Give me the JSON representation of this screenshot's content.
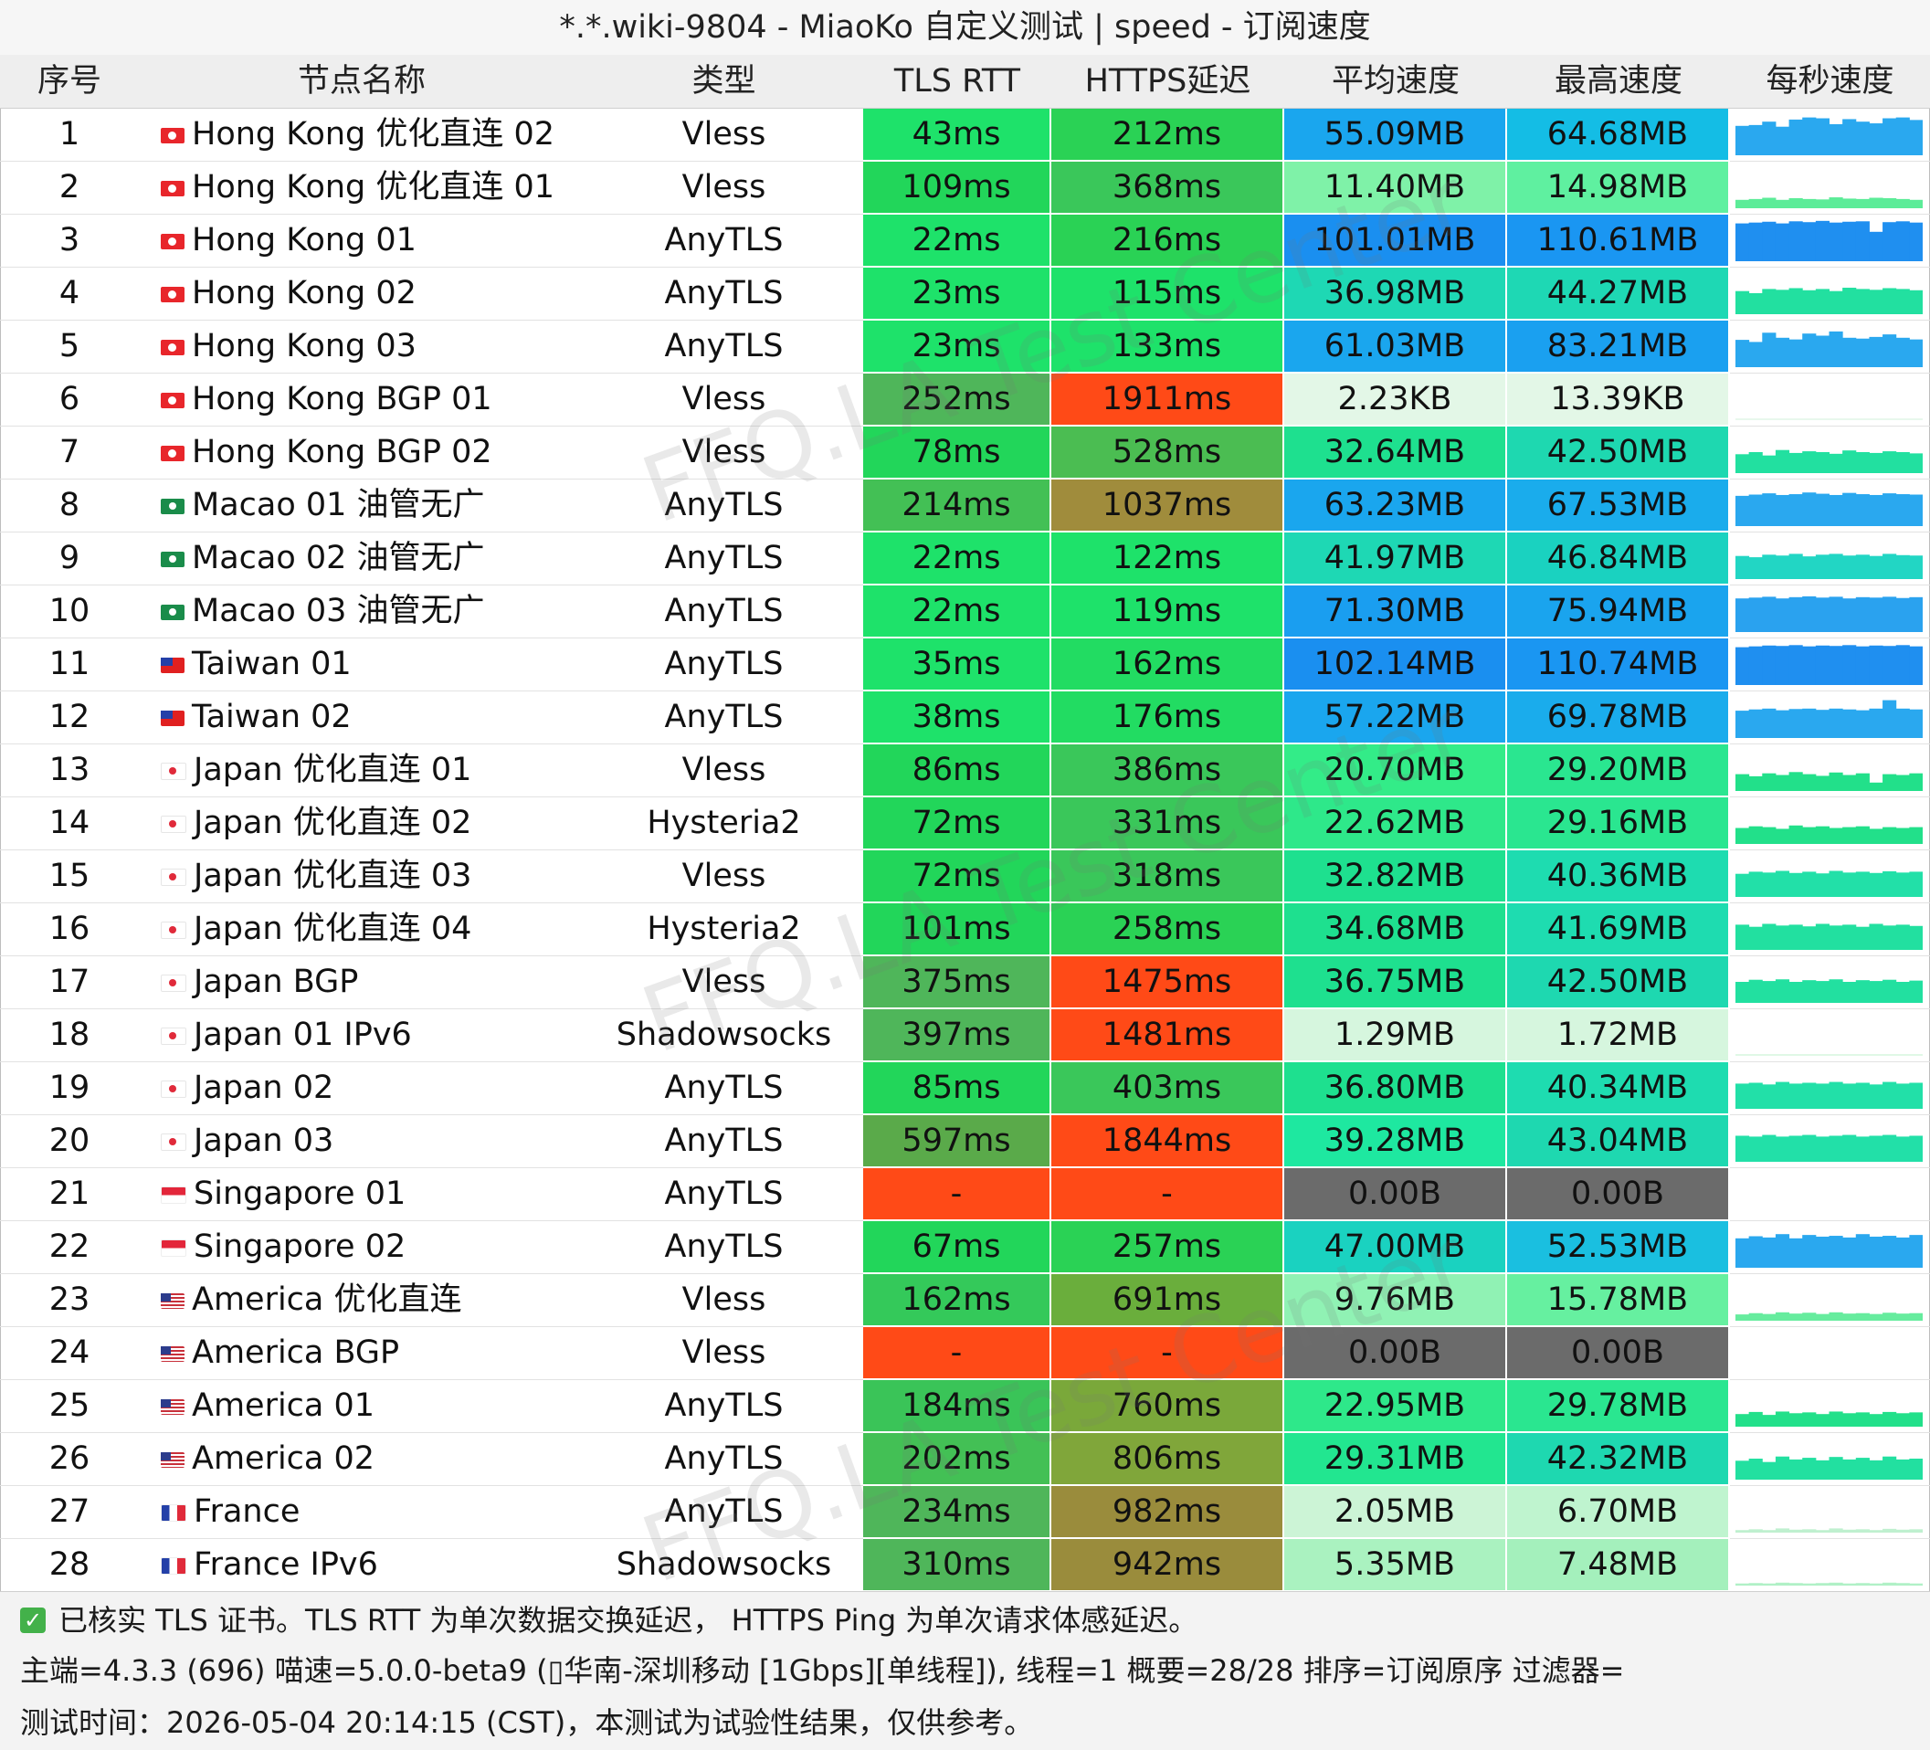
{
  "title": "*.*.wiki-9804 - MiaoKo 自定义测试 | speed - 订阅速度",
  "headers": [
    "序号",
    "节点名称",
    "类型",
    "TLS RTT",
    "HTTPS延迟",
    "平均速度",
    "最高速度",
    "每秒速度"
  ],
  "watermark": "FFQ.LA Test Center",
  "rows": [
    {
      "idx": "1",
      "flag": "hk",
      "name": "Hong Kong 优化直连 02",
      "type": "Vless",
      "rtt": "43ms",
      "https": "212ms",
      "avg": "55.09MB",
      "max": "64.68MB",
      "rtt_color": "#1ee26a",
      "https_color": "#2ad255",
      "avg_color": "#1aa6ee",
      "max_color": "#14bde5",
      "spark_color": "#2aa8ef",
      "spark": [
        0.7,
        0.72,
        0.8,
        0.68,
        0.85,
        0.9,
        0.88,
        0.74,
        0.86,
        0.8,
        0.76,
        0.88,
        0.9,
        0.84
      ]
    },
    {
      "idx": "2",
      "flag": "hk",
      "name": "Hong Kong 优化直连 01",
      "type": "Vless",
      "rtt": "109ms",
      "https": "368ms",
      "avg": "11.40MB",
      "max": "14.98MB",
      "rtt_color": "#22d65a",
      "https_color": "#3ac75a",
      "avg_color": "#7ff2a8",
      "max_color": "#5ff0a0",
      "spark_color": "#5cec98",
      "spark": [
        0.2,
        0.22,
        0.25,
        0.2,
        0.24,
        0.22,
        0.21,
        0.26,
        0.23,
        0.22,
        0.25,
        0.24,
        0.22,
        0.2
      ]
    },
    {
      "idx": "3",
      "flag": "hk",
      "name": "Hong Kong 01",
      "type": "AnyTLS",
      "rtt": "22ms",
      "https": "216ms",
      "avg": "101.01MB",
      "max": "110.61MB",
      "rtt_color": "#1ee26a",
      "https_color": "#2ad255",
      "avg_color": "#1a8ff0",
      "max_color": "#1a96f2",
      "spark_color": "#1f8ff0",
      "spark": [
        0.9,
        0.92,
        0.94,
        0.9,
        0.95,
        0.93,
        0.96,
        0.92,
        0.94,
        0.95,
        0.7,
        0.93,
        0.95,
        0.92
      ]
    },
    {
      "idx": "4",
      "flag": "hk",
      "name": "Hong Kong 02",
      "type": "AnyTLS",
      "rtt": "23ms",
      "https": "115ms",
      "avg": "36.98MB",
      "max": "44.27MB",
      "rtt_color": "#1ee26a",
      "https_color": "#1ee26a",
      "avg_color": "#1ed8b4",
      "max_color": "#1ed8b4",
      "spark_color": "#22e0a0",
      "spark": [
        0.55,
        0.5,
        0.6,
        0.58,
        0.62,
        0.57,
        0.6,
        0.55,
        0.63,
        0.6,
        0.58,
        0.62,
        0.6,
        0.57
      ]
    },
    {
      "idx": "5",
      "flag": "hk",
      "name": "Hong Kong 03",
      "type": "AnyTLS",
      "rtt": "23ms",
      "https": "133ms",
      "avg": "61.03MB",
      "max": "83.21MB",
      "rtt_color": "#1ee26a",
      "https_color": "#1ee26a",
      "avg_color": "#1aa6ee",
      "max_color": "#1aa0f0",
      "spark_color": "#2aa8ef",
      "spark": [
        0.65,
        0.6,
        0.82,
        0.7,
        0.66,
        0.8,
        0.75,
        0.85,
        0.7,
        0.68,
        0.72,
        0.78,
        0.7,
        0.66
      ]
    },
    {
      "idx": "6",
      "flag": "hk",
      "name": "Hong Kong BGP 01",
      "type": "Vless",
      "rtt": "252ms",
      "https": "1911ms",
      "avg": "2.23KB",
      "max": "13.39KB",
      "rtt_color": "#4fb65a",
      "https_color": "#ff4a17",
      "avg_color": "#e3f7e7",
      "max_color": "#e3f7e7",
      "spark_color": "#e8f8ec",
      "spark": [
        0.02,
        0.02,
        0.02,
        0.02,
        0.02,
        0.02,
        0.02,
        0.02,
        0.02,
        0.02,
        0.02,
        0.02,
        0.02,
        0.02
      ]
    },
    {
      "idx": "7",
      "flag": "hk",
      "name": "Hong Kong BGP 02",
      "type": "Vless",
      "rtt": "78ms",
      "https": "528ms",
      "avg": "32.64MB",
      "max": "42.50MB",
      "rtt_color": "#22d65a",
      "https_color": "#4bbd52",
      "avg_color": "#1ee08f",
      "max_color": "#1ed8b0",
      "spark_color": "#22e0a0",
      "spark": [
        0.45,
        0.5,
        0.42,
        0.55,
        0.48,
        0.52,
        0.5,
        0.46,
        0.54,
        0.5,
        0.48,
        0.52,
        0.5,
        0.47
      ]
    },
    {
      "idx": "8",
      "flag": "mo",
      "name": "Macao 01 油管无广",
      "type": "AnyTLS",
      "rtt": "214ms",
      "https": "1037ms",
      "avg": "63.23MB",
      "max": "67.53MB",
      "rtt_color": "#43c055",
      "https_color": "#a08c3c",
      "avg_color": "#1aa6ee",
      "max_color": "#1aacec",
      "spark_color": "#2aa8ef",
      "spark": [
        0.72,
        0.75,
        0.78,
        0.74,
        0.76,
        0.8,
        0.77,
        0.74,
        0.79,
        0.76,
        0.74,
        0.78,
        0.76,
        0.75
      ]
    },
    {
      "idx": "9",
      "flag": "mo",
      "name": "Macao 02 油管无广",
      "type": "AnyTLS",
      "rtt": "22ms",
      "https": "122ms",
      "avg": "41.97MB",
      "max": "46.84MB",
      "rtt_color": "#1ee26a",
      "https_color": "#1ee26a",
      "avg_color": "#1ed8b4",
      "max_color": "#1ad2c0",
      "spark_color": "#22d6c4",
      "spark": [
        0.55,
        0.52,
        0.58,
        0.56,
        0.6,
        0.54,
        0.58,
        0.6,
        0.56,
        0.58,
        0.55,
        0.6,
        0.57,
        0.56
      ]
    },
    {
      "idx": "10",
      "flag": "mo",
      "name": "Macao 03 油管无广",
      "type": "AnyTLS",
      "rtt": "22ms",
      "https": "119ms",
      "avg": "71.30MB",
      "max": "75.94MB",
      "rtt_color": "#1ee26a",
      "https_color": "#1ee26a",
      "avg_color": "#1a9ef0",
      "max_color": "#1aa4ee",
      "spark_color": "#2aa2ef",
      "spark": [
        0.8,
        0.82,
        0.84,
        0.8,
        0.83,
        0.85,
        0.82,
        0.84,
        0.8,
        0.83,
        0.82,
        0.84,
        0.81,
        0.83
      ]
    },
    {
      "idx": "11",
      "flag": "tw",
      "name": "Taiwan 01",
      "type": "AnyTLS",
      "rtt": "35ms",
      "https": "162ms",
      "avg": "102.14MB",
      "max": "110.74MB",
      "rtt_color": "#1ee26a",
      "https_color": "#22dc62",
      "avg_color": "#1a8ff0",
      "max_color": "#1a96f2",
      "spark_color": "#1f8ff0",
      "spark": [
        0.9,
        0.92,
        0.94,
        0.93,
        0.95,
        0.92,
        0.94,
        0.93,
        0.95,
        0.92,
        0.94,
        0.93,
        0.95,
        0.92
      ]
    },
    {
      "idx": "12",
      "flag": "tw",
      "name": "Taiwan 02",
      "type": "AnyTLS",
      "rtt": "38ms",
      "https": "176ms",
      "avg": "57.22MB",
      "max": "69.78MB",
      "rtt_color": "#1ee26a",
      "https_color": "#22dc62",
      "avg_color": "#1aa6ee",
      "max_color": "#1aacec",
      "spark_color": "#2aa8ef",
      "spark": [
        0.65,
        0.68,
        0.7,
        0.66,
        0.69,
        0.7,
        0.67,
        0.7,
        0.68,
        0.66,
        0.7,
        0.9,
        0.7,
        0.68
      ]
    },
    {
      "idx": "13",
      "flag": "jp",
      "name": "Japan 优化直连 01",
      "type": "Vless",
      "rtt": "86ms",
      "https": "386ms",
      "avg": "20.70MB",
      "max": "29.20MB",
      "rtt_color": "#22d65a",
      "https_color": "#3ac75a",
      "avg_color": "#33ec88",
      "max_color": "#2ae690",
      "spark_color": "#22e08a",
      "spark": [
        0.4,
        0.35,
        0.42,
        0.38,
        0.45,
        0.4,
        0.36,
        0.44,
        0.38,
        0.42,
        0.2,
        0.4,
        0.38,
        0.42
      ]
    },
    {
      "idx": "14",
      "flag": "jp",
      "name": "Japan 优化直连 02",
      "type": "Hysteria2",
      "rtt": "72ms",
      "https": "331ms",
      "avg": "22.62MB",
      "max": "29.16MB",
      "rtt_color": "#22d65a",
      "https_color": "#3ac75a",
      "avg_color": "#2ee88a",
      "max_color": "#2ae690",
      "spark_color": "#22e08a",
      "spark": [
        0.38,
        0.42,
        0.4,
        0.36,
        0.44,
        0.4,
        0.42,
        0.38,
        0.4,
        0.42,
        0.36,
        0.4,
        0.38,
        0.4
      ]
    },
    {
      "idx": "15",
      "flag": "jp",
      "name": "Japan 优化直连 03",
      "type": "Vless",
      "rtt": "72ms",
      "https": "318ms",
      "avg": "32.82MB",
      "max": "40.36MB",
      "rtt_color": "#22d65a",
      "https_color": "#3ac75a",
      "avg_color": "#1ee08f",
      "max_color": "#1edcb0",
      "spark_color": "#22e0a8",
      "spark": [
        0.55,
        0.6,
        0.58,
        0.62,
        0.57,
        0.6,
        0.56,
        0.62,
        0.58,
        0.6,
        0.57,
        0.61,
        0.58,
        0.6
      ]
    },
    {
      "idx": "16",
      "flag": "jp",
      "name": "Japan 优化直连 04",
      "type": "Hysteria2",
      "rtt": "101ms",
      "https": "258ms",
      "avg": "34.68MB",
      "max": "41.69MB",
      "rtt_color": "#22d65a",
      "https_color": "#2ad255",
      "avg_color": "#1ee08f",
      "max_color": "#1edcb0",
      "spark_color": "#22e0a0",
      "spark": [
        0.6,
        0.55,
        0.62,
        0.58,
        0.6,
        0.56,
        0.62,
        0.58,
        0.6,
        0.55,
        0.62,
        0.58,
        0.6,
        0.57
      ]
    },
    {
      "idx": "17",
      "flag": "jp",
      "name": "Japan BGP",
      "type": "Vless",
      "rtt": "375ms",
      "https": "1475ms",
      "avg": "36.75MB",
      "max": "42.50MB",
      "rtt_color": "#4fb65a",
      "https_color": "#ff4a17",
      "avg_color": "#1ee08f",
      "max_color": "#1ed8b0",
      "spark_color": "#22e0a0",
      "spark": [
        0.5,
        0.55,
        0.52,
        0.56,
        0.5,
        0.54,
        0.52,
        0.56,
        0.5,
        0.54,
        0.52,
        0.55,
        0.5,
        0.53
      ]
    },
    {
      "idx": "18",
      "flag": "jp",
      "name": "Japan 01 IPv6",
      "type": "Shadowsocks",
      "rtt": "397ms",
      "https": "1481ms",
      "avg": "1.29MB",
      "max": "1.72MB",
      "rtt_color": "#4fb65a",
      "https_color": "#ff4a17",
      "avg_color": "#d6f6de",
      "max_color": "#d6f6de",
      "spark_color": "#e0f8e6",
      "spark": [
        0.03,
        0.03,
        0.03,
        0.03,
        0.03,
        0.03,
        0.03,
        0.03,
        0.03,
        0.03,
        0.03,
        0.03,
        0.03,
        0.03
      ]
    },
    {
      "idx": "19",
      "flag": "jp",
      "name": "Japan 02",
      "type": "AnyTLS",
      "rtt": "85ms",
      "https": "403ms",
      "avg": "36.80MB",
      "max": "40.34MB",
      "rtt_color": "#22d65a",
      "https_color": "#3ac75a",
      "avg_color": "#1ee08f",
      "max_color": "#1edcb0",
      "spark_color": "#22e0a8",
      "spark": [
        0.6,
        0.62,
        0.58,
        0.64,
        0.6,
        0.62,
        0.6,
        0.64,
        0.6,
        0.62,
        0.58,
        0.64,
        0.6,
        0.62
      ]
    },
    {
      "idx": "20",
      "flag": "jp",
      "name": "Japan 03",
      "type": "AnyTLS",
      "rtt": "597ms",
      "https": "1844ms",
      "avg": "39.28MB",
      "max": "43.04MB",
      "rtt_color": "#5aaa4a",
      "https_color": "#ff4a17",
      "avg_color": "#1ee8a0",
      "max_color": "#1ed8b0",
      "spark_color": "#22e0a8",
      "spark": [
        0.62,
        0.6,
        0.64,
        0.6,
        0.62,
        0.64,
        0.6,
        0.62,
        0.64,
        0.6,
        0.62,
        0.64,
        0.6,
        0.62
      ]
    },
    {
      "idx": "21",
      "flag": "sg",
      "name": "Singapore 01",
      "type": "AnyTLS",
      "rtt": "-",
      "https": "-",
      "avg": "0.00B",
      "max": "0.00B",
      "rtt_color": "#ff4a17",
      "https_color": "#ff4a17",
      "avg_color": "#6b6b6b",
      "max_color": "#6b6b6b",
      "spark_color": "#ffffff",
      "spark": []
    },
    {
      "idx": "22",
      "flag": "sg",
      "name": "Singapore 02",
      "type": "AnyTLS",
      "rtt": "67ms",
      "https": "257ms",
      "avg": "47.00MB",
      "max": "52.53MB",
      "rtt_color": "#22d65a",
      "https_color": "#2ad255",
      "avg_color": "#1ad2c0",
      "max_color": "#1abfe0",
      "spark_color": "#2aa8ef",
      "spark": [
        0.7,
        0.75,
        0.72,
        0.8,
        0.7,
        0.78,
        0.74,
        0.76,
        0.72,
        0.8,
        0.74,
        0.76,
        0.72,
        0.78
      ]
    },
    {
      "idx": "23",
      "flag": "us",
      "name": "America 优化直连",
      "type": "Vless",
      "rtt": "162ms",
      "https": "691ms",
      "avg": "9.76MB",
      "max": "15.78MB",
      "rtt_color": "#34c95a",
      "https_color": "#6aae3c",
      "avg_color": "#90f2b4",
      "max_color": "#66f0a0",
      "spark_color": "#66ec9e",
      "spark": [
        0.15,
        0.18,
        0.16,
        0.2,
        0.17,
        0.19,
        0.16,
        0.2,
        0.17,
        0.18,
        0.16,
        0.19,
        0.17,
        0.18
      ]
    },
    {
      "idx": "24",
      "flag": "us",
      "name": "America BGP",
      "type": "Vless",
      "rtt": "-",
      "https": "-",
      "avg": "0.00B",
      "max": "0.00B",
      "rtt_color": "#ff4a17",
      "https_color": "#ff4a17",
      "avg_color": "#6b6b6b",
      "max_color": "#6b6b6b",
      "spark_color": "#ffffff",
      "spark": []
    },
    {
      "idx": "25",
      "flag": "us",
      "name": "America 01",
      "type": "AnyTLS",
      "rtt": "184ms",
      "https": "760ms",
      "avg": "22.95MB",
      "max": "29.78MB",
      "rtt_color": "#3ac458",
      "https_color": "#7aa83a",
      "avg_color": "#2ee88a",
      "max_color": "#2ae690",
      "spark_color": "#22e08a",
      "spark": [
        0.3,
        0.35,
        0.28,
        0.36,
        0.32,
        0.34,
        0.3,
        0.36,
        0.32,
        0.34,
        0.3,
        0.35,
        0.32,
        0.34
      ]
    },
    {
      "idx": "26",
      "flag": "us",
      "name": "America 02",
      "type": "AnyTLS",
      "rtt": "202ms",
      "https": "806ms",
      "avg": "29.31MB",
      "max": "42.32MB",
      "rtt_color": "#43c055",
      "https_color": "#80a63a",
      "avg_color": "#22e690",
      "max_color": "#1ed8b0",
      "spark_color": "#22e0a0",
      "spark": [
        0.45,
        0.5,
        0.42,
        0.55,
        0.48,
        0.52,
        0.46,
        0.54,
        0.48,
        0.52,
        0.46,
        0.55,
        0.48,
        0.5
      ]
    },
    {
      "idx": "27",
      "flag": "fr",
      "name": "France",
      "type": "AnyTLS",
      "rtt": "234ms",
      "https": "982ms",
      "avg": "2.05MB",
      "max": "6.70MB",
      "rtt_color": "#4fb65a",
      "https_color": "#9a8c3c",
      "avg_color": "#ccf4d6",
      "max_color": "#bff4cf",
      "spark_color": "#bff0cf",
      "spark": [
        0.06,
        0.08,
        0.06,
        0.1,
        0.07,
        0.08,
        0.06,
        0.1,
        0.07,
        0.08,
        0.06,
        0.09,
        0.07,
        0.08
      ]
    },
    {
      "idx": "28",
      "flag": "fr",
      "name": "France IPv6",
      "type": "Shadowsocks",
      "rtt": "310ms",
      "https": "942ms",
      "avg": "5.35MB",
      "max": "7.48MB",
      "rtt_color": "#4fb65a",
      "https_color": "#9a8c3c",
      "avg_color": "#aaf2c0",
      "max_color": "#a4f0bc",
      "spark_color": "#b0f0c6",
      "spark": [
        0.05,
        0.06,
        0.05,
        0.07,
        0.06,
        0.05,
        0.06,
        0.07,
        0.05,
        0.06,
        0.05,
        0.07,
        0.06,
        0.05
      ]
    }
  ],
  "footer": {
    "line1": "已核实 TLS 证书。TLS RTT 为单次数据交换延迟， HTTPS Ping 为单次请求体感延迟。",
    "line2": "主端=4.3.3 (696) 喵速=5.0.0-beta9 (▯华南-深圳移动 [1Gbps][单线程]), 线程=1 概要=28/28 排序=订阅原序 过滤器=",
    "line3": "测试时间：2026-05-04 20:14:15 (CST)，本测试为试验性结果，仅供参考。"
  }
}
